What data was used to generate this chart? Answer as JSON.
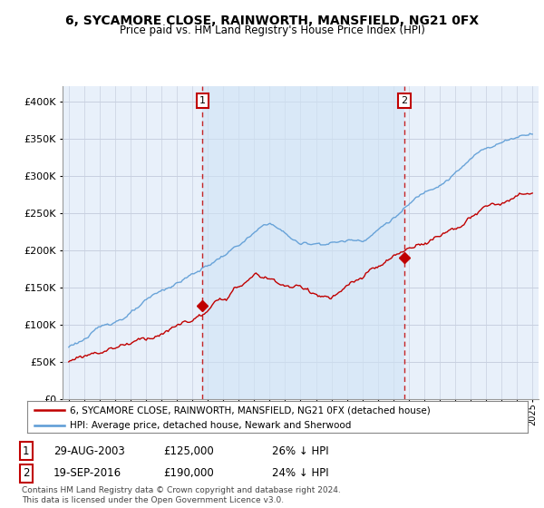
{
  "title": "6, SYCAMORE CLOSE, RAINWORTH, MANSFIELD, NG21 0FX",
  "subtitle": "Price paid vs. HM Land Registry's House Price Index (HPI)",
  "legend_line1": "6, SYCAMORE CLOSE, RAINWORTH, MANSFIELD, NG21 0FX (detached house)",
  "legend_line2": "HPI: Average price, detached house, Newark and Sherwood",
  "transaction1_date": "29-AUG-2003",
  "transaction1_price": "£125,000",
  "transaction1_hpi": "26% ↓ HPI",
  "transaction1_year": 2003.66,
  "transaction1_value": 125000,
  "transaction2_date": "19-SEP-2016",
  "transaction2_price": "£190,000",
  "transaction2_hpi": "24% ↓ HPI",
  "transaction2_year": 2016.72,
  "transaction2_value": 190000,
  "footer": "Contains HM Land Registry data © Crown copyright and database right 2024.\nThis data is licensed under the Open Government Licence v3.0.",
  "hpi_color": "#5b9bd5",
  "hpi_fill_color": "#dce9f5",
  "price_color": "#c00000",
  "vline_color": "#c00000",
  "background_color": "#e8f0fa",
  "shade_color": "#d0e4f5",
  "ylim": [
    0,
    420000
  ],
  "xlim_start": 1994.6,
  "xlim_end": 2025.4,
  "grid_color": "#c8d0e0"
}
